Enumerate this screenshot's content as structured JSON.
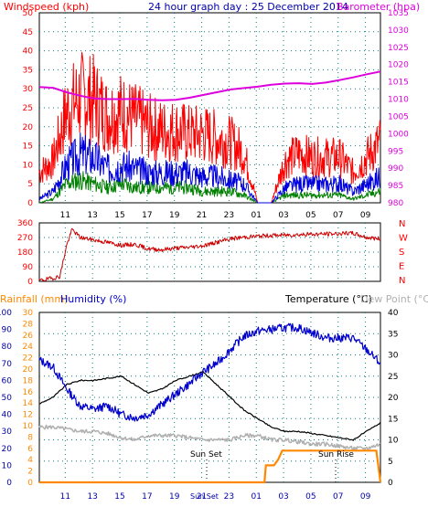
{
  "page": {
    "title": "24 hour graph day : 25 December 2014"
  },
  "colors": {
    "windspeed": "#ff0000",
    "windspeed_avg": "#0000dd",
    "windspeed_low": "#008000",
    "barometer": "#dd00dd",
    "direction": "#cc0000",
    "humidity": "#0000cc",
    "temperature": "#000000",
    "dewpoint": "#b0b0b0",
    "rainfall": "#ff8800",
    "axis_blue": "#0000aa",
    "axis_orange": "#ff8800",
    "grid": "#0a7a7a"
  },
  "chart_data": [
    {
      "id": "wind-baro",
      "type": "line",
      "labels": {
        "left": "Windspeed (kph)",
        "right": "Barometer (hpa)"
      },
      "x_ticks": [
        "11",
        "13",
        "15",
        "17",
        "19",
        "21",
        "23",
        "01",
        "03",
        "05",
        "07",
        "09"
      ],
      "y_left": {
        "min": 0,
        "max": 50,
        "ticks": [
          0,
          5,
          10,
          15,
          20,
          25,
          30,
          35,
          40,
          45,
          50
        ]
      },
      "y_right": {
        "min": 980,
        "max": 1035,
        "ticks": [
          980,
          985,
          990,
          995,
          1000,
          1005,
          1010,
          1015,
          1020,
          1025,
          1030,
          1035
        ]
      },
      "series": [
        {
          "axis": "right",
          "color_key": "barometer",
          "points": [
            [
              0,
              1013.5
            ],
            [
              1,
              1013.3
            ],
            [
              2,
              1012
            ],
            [
              3,
              1011
            ],
            [
              4,
              1010.2
            ],
            [
              5,
              1010
            ],
            [
              6,
              1010
            ],
            [
              7,
              1010.1
            ],
            [
              8,
              1009.8
            ],
            [
              9,
              1009.7
            ],
            [
              10,
              1009.8
            ],
            [
              11,
              1010.4
            ],
            [
              12,
              1011.2
            ],
            [
              13,
              1012
            ],
            [
              14,
              1012.8
            ],
            [
              15,
              1013.2
            ],
            [
              16,
              1013.6
            ],
            [
              17,
              1014.2
            ],
            [
              18,
              1014.5
            ],
            [
              19,
              1014.6
            ],
            [
              20,
              1014.4
            ],
            [
              21,
              1014.8
            ],
            [
              22,
              1015.5
            ],
            [
              23,
              1016.3
            ],
            [
              24,
              1017.2
            ],
            [
              25,
              1018
            ]
          ]
        }
      ],
      "wind_profile": {
        "hours": [
          0,
          1,
          2,
          3,
          4,
          5,
          6,
          7,
          8,
          9,
          10,
          11,
          12,
          13,
          14,
          15,
          16,
          17,
          18,
          19,
          20,
          21,
          22,
          23,
          24,
          25
        ],
        "gust": [
          8,
          11,
          24,
          28,
          27,
          23,
          24,
          22,
          20,
          19,
          19,
          18,
          18,
          17,
          16,
          13,
          0,
          0,
          11,
          13,
          12,
          12,
          12,
          8,
          12,
          16
        ],
        "avg": [
          1,
          3,
          10,
          13,
          12,
          9,
          10,
          9,
          8,
          8,
          8,
          8,
          7,
          7,
          6,
          5,
          0,
          0,
          4,
          5,
          5,
          5,
          5,
          3,
          5,
          7
        ],
        "low": [
          0,
          1,
          5,
          6,
          5,
          4,
          5,
          4,
          4,
          4,
          4,
          4,
          3,
          3,
          3,
          2,
          0,
          0,
          2,
          2,
          2,
          2,
          2,
          1,
          2,
          3
        ]
      }
    },
    {
      "id": "direction",
      "type": "line",
      "labels": {
        "compass": [
          "N",
          "W",
          "S",
          "E",
          "N"
        ]
      },
      "x_ticks": [],
      "y_left": {
        "min": 0,
        "max": 360,
        "ticks": [
          0,
          90,
          180,
          270,
          360
        ]
      },
      "series": [
        {
          "color_key": "direction",
          "points": [
            [
              0,
              5
            ],
            [
              1,
              20
            ],
            [
              1.5,
              30
            ],
            [
              2,
              220
            ],
            [
              2.4,
              320
            ],
            [
              3,
              270
            ],
            [
              4,
              255
            ],
            [
              5,
              240
            ],
            [
              6,
              222
            ],
            [
              7,
              228
            ],
            [
              8,
              200
            ],
            [
              9,
              195
            ],
            [
              10,
              205
            ],
            [
              11,
              210
            ],
            [
              12,
              220
            ],
            [
              13,
              240
            ],
            [
              14,
              262
            ],
            [
              15,
              272
            ],
            [
              16,
              278
            ],
            [
              17,
              283
            ],
            [
              18,
              285
            ],
            [
              19,
              288
            ],
            [
              20,
              290
            ],
            [
              21,
              292
            ],
            [
              22,
              294
            ],
            [
              23,
              296
            ],
            [
              24,
              270
            ],
            [
              25,
              262
            ]
          ]
        }
      ]
    },
    {
      "id": "temp-hum-rain",
      "type": "line",
      "labels": {
        "rainfall": "Rainfall (mm)",
        "humidity": "Humidity (%)",
        "temperature": "Temperature (°C)",
        "dewpoint": "Dew Point (°C)"
      },
      "annotations": {
        "sunset": "Sun Set",
        "sunrise": "Sun Rise"
      },
      "x_ticks": [
        "11",
        "13",
        "15",
        "17",
        "19",
        "21",
        "23",
        "01",
        "03",
        "05",
        "07",
        "09"
      ],
      "y_humidity": {
        "min": 0,
        "max": 100,
        "ticks": [
          0,
          10,
          20,
          30,
          40,
          50,
          60,
          70,
          80,
          90,
          100
        ]
      },
      "y_rain": {
        "min": 0,
        "max": 30,
        "ticks": [
          0,
          2,
          4,
          6,
          8,
          10,
          12,
          14,
          16,
          18,
          20,
          22,
          24,
          26,
          28,
          30
        ]
      },
      "y_temp": {
        "min": 0,
        "max": 40,
        "ticks": [
          0,
          5,
          10,
          15,
          20,
          25,
          30,
          35,
          40
        ]
      },
      "series": [
        {
          "axis": "humidity",
          "color_key": "humidity",
          "points": [
            [
              0,
              72
            ],
            [
              1,
              68
            ],
            [
              2,
              55
            ],
            [
              3,
              45
            ],
            [
              4,
              43
            ],
            [
              5,
              45
            ],
            [
              6,
              40
            ],
            [
              7,
              38
            ],
            [
              8,
              40
            ],
            [
              9,
              46
            ],
            [
              10,
              52
            ],
            [
              11,
              58
            ],
            [
              12,
              65
            ],
            [
              13,
              70
            ],
            [
              14,
              78
            ],
            [
              15,
              86
            ],
            [
              16,
              89
            ],
            [
              17,
              90
            ],
            [
              18,
              91
            ],
            [
              19,
              91
            ],
            [
              20,
              88
            ],
            [
              21,
              85
            ],
            [
              22,
              85
            ],
            [
              23,
              85
            ],
            [
              24,
              78
            ],
            [
              25,
              70
            ]
          ]
        },
        {
          "axis": "temp",
          "color_key": "temperature",
          "points": [
            [
              0,
              18.5
            ],
            [
              1,
              20
            ],
            [
              2,
              23
            ],
            [
              3,
              24
            ],
            [
              4,
              24
            ],
            [
              5,
              24.5
            ],
            [
              6,
              25
            ],
            [
              7,
              23
            ],
            [
              8,
              21
            ],
            [
              9,
              22
            ],
            [
              10,
              24
            ],
            [
              11,
              25
            ],
            [
              12,
              26
            ],
            [
              13,
              23
            ],
            [
              14,
              20
            ],
            [
              15,
              17
            ],
            [
              16,
              15
            ],
            [
              17,
              13
            ],
            [
              18,
              12
            ],
            [
              19,
              12
            ],
            [
              20,
              11.5
            ],
            [
              21,
              11
            ],
            [
              22,
              10.5
            ],
            [
              23,
              10
            ],
            [
              24,
              12
            ],
            [
              25,
              14
            ]
          ]
        },
        {
          "axis": "temp",
          "color_key": "dewpoint",
          "points": [
            [
              0,
              13
            ],
            [
              1,
              13
            ],
            [
              2,
              12.5
            ],
            [
              3,
              12
            ],
            [
              4,
              12
            ],
            [
              5,
              11.5
            ],
            [
              6,
              10.5
            ],
            [
              7,
              10
            ],
            [
              8,
              11
            ],
            [
              9,
              11
            ],
            [
              10,
              11
            ],
            [
              11,
              10.5
            ],
            [
              12,
              10
            ],
            [
              13,
              10
            ],
            [
              14,
              10
            ],
            [
              15,
              11
            ],
            [
              16,
              11
            ],
            [
              17,
              10
            ],
            [
              18,
              10
            ],
            [
              19,
              9.5
            ],
            [
              20,
              9
            ],
            [
              21,
              9
            ],
            [
              22,
              8.5
            ],
            [
              23,
              8
            ],
            [
              24,
              8
            ],
            [
              25,
              9
            ]
          ]
        },
        {
          "axis": "rain",
          "color_key": "rainfall",
          "points": [
            [
              0,
              0
            ],
            [
              16.5,
              0
            ],
            [
              16.6,
              3
            ],
            [
              17.2,
              3
            ],
            [
              17.5,
              4
            ],
            [
              17.8,
              5.6
            ],
            [
              24.7,
              5.6
            ],
            [
              25,
              0
            ]
          ]
        }
      ]
    }
  ]
}
